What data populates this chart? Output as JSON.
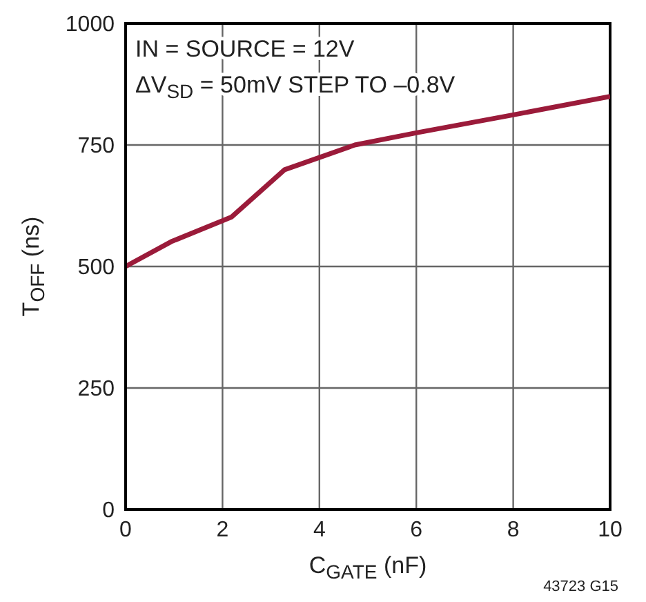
{
  "chart_data": {
    "type": "line",
    "xlabel": "C$_{GATE}$ (nF)",
    "ylabel": "T$_{OFF}$ (ns)",
    "x": [
      0,
      0.94,
      2.19,
      3.28,
      4.73,
      6,
      8,
      10
    ],
    "series": [
      {
        "color": "#9b1b3a",
        "values": [
          500,
          551,
          602,
          699,
          750,
          775,
          812,
          850
        ]
      }
    ],
    "xlim": [
      0,
      10
    ],
    "xticks": [
      0,
      2,
      4,
      6,
      8,
      10
    ],
    "ylim": [
      0,
      1000
    ],
    "yticks": [
      0,
      250,
      500,
      750,
      1000
    ],
    "grid": true,
    "legend": false,
    "marker": "none",
    "line_style": "solid",
    "annotations": [
      "IN = SOURCE = 12V",
      "ΔV$_{SD}$ = 50mV STEP TO –0.8V",
      "43723 G15"
    ]
  }
}
